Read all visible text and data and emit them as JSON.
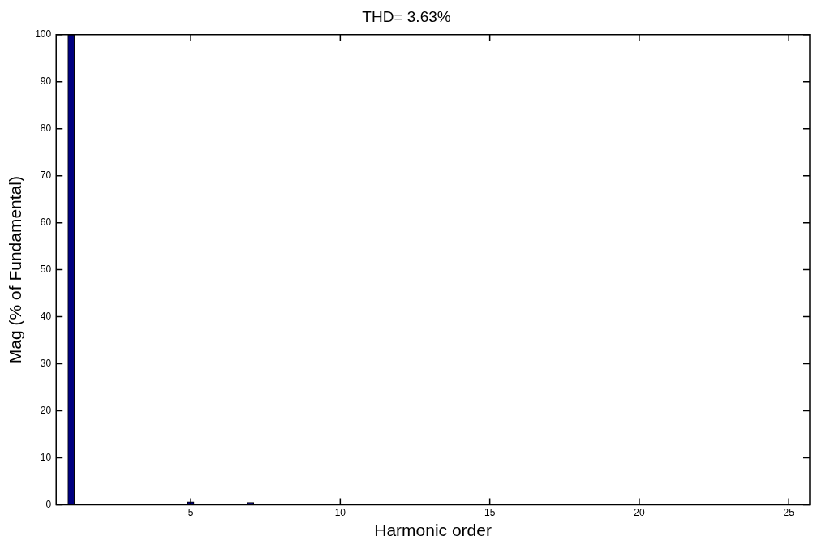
{
  "chart_data": {
    "type": "bar",
    "title": "THD= 3.63%",
    "xlabel": "Harmonic order",
    "ylabel": "Mag (% of Fundamental)",
    "x": [
      1,
      2,
      3,
      4,
      5,
      6,
      7,
      8,
      9,
      10,
      11,
      12,
      13,
      14,
      15,
      16,
      17,
      18,
      19,
      20,
      21,
      22,
      23,
      24,
      25
    ],
    "values": [
      100,
      0,
      0,
      0,
      0.6,
      0,
      0.5,
      0,
      0,
      0,
      0,
      0,
      0,
      0,
      0,
      0,
      0,
      0,
      0,
      0,
      0,
      0,
      0,
      0,
      0
    ],
    "color": "#000080",
    "xlim": [
      0.5,
      25.7
    ],
    "xticks": [
      5,
      10,
      15,
      20,
      25
    ],
    "ylim": [
      0,
      100
    ],
    "yticks": [
      0,
      10,
      20,
      30,
      40,
      50,
      60,
      70,
      80,
      90,
      100
    ]
  }
}
